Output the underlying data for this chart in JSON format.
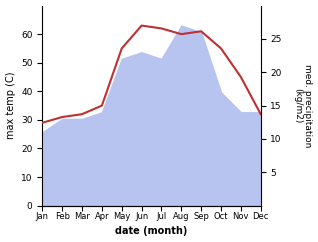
{
  "months": [
    "Jan",
    "Feb",
    "Mar",
    "Apr",
    "May",
    "Jun",
    "Jul",
    "Aug",
    "Sep",
    "Oct",
    "Nov",
    "Dec"
  ],
  "x": [
    1,
    2,
    3,
    4,
    5,
    6,
    7,
    8,
    9,
    10,
    11,
    12
  ],
  "temperature": [
    29,
    31,
    32,
    35,
    55,
    63,
    62,
    60,
    61,
    55,
    45,
    32
  ],
  "precipitation": [
    11,
    13,
    13,
    14,
    22,
    23,
    22,
    27,
    26,
    17,
    14,
    14
  ],
  "temp_color": "#c03030",
  "precip_fill_color": "#b8c4f0",
  "ylabel_left": "max temp (C)",
  "ylabel_right": "med. precipitation\n(kg/m2)",
  "xlabel": "date (month)",
  "ylim_left": [
    0,
    70
  ],
  "ylim_right": [
    0,
    30
  ],
  "yticks_left": [
    0,
    10,
    20,
    30,
    40,
    50,
    60
  ],
  "yticks_right": [
    5,
    10,
    15,
    20,
    25
  ],
  "background_color": "#ffffff",
  "figsize": [
    3.18,
    2.42
  ],
  "dpi": 100
}
